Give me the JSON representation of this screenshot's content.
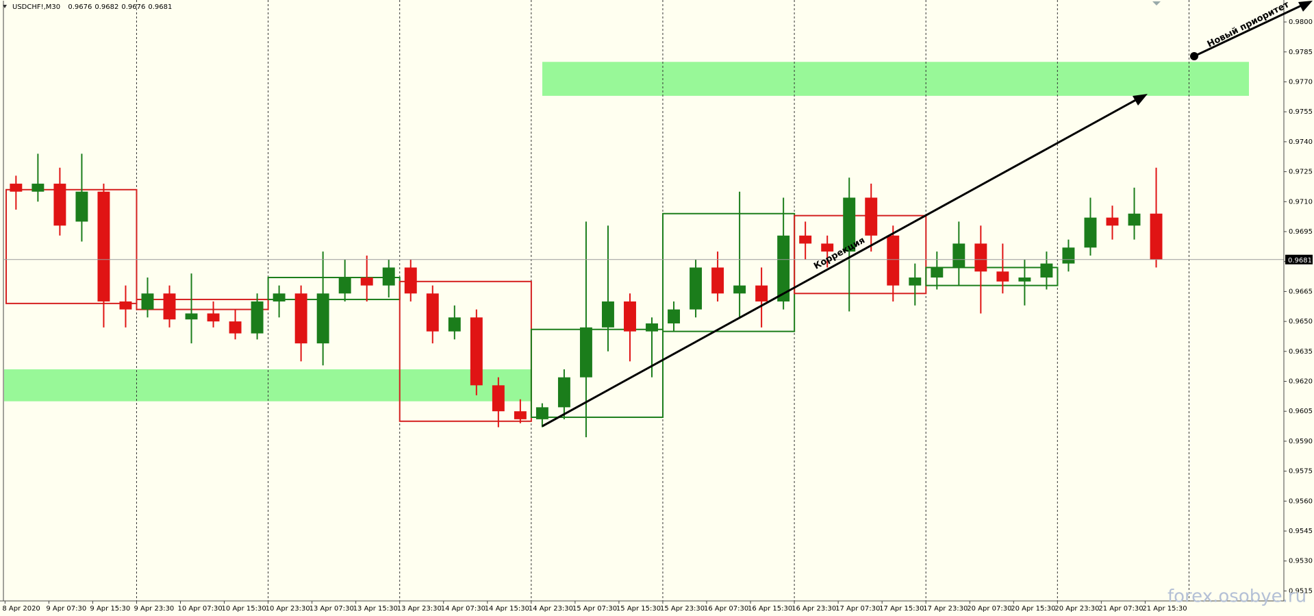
{
  "chart_data": {
    "type": "candlestick",
    "symbol": "USDCHF!,M30",
    "header_ohlc": [
      0.9676,
      0.9682,
      0.9676,
      0.9681
    ],
    "last_price": 0.9681,
    "up_color": "#1b7d1b",
    "down_color": "#e01414",
    "ylim": [
      0.951,
      0.9811
    ],
    "yticks": [
      {
        "value": 0.98,
        "label": "0.9800"
      },
      0.9785,
      {
        "value": 0.977,
        "label": "0.9770"
      },
      0.9755,
      {
        "value": 0.974,
        "label": "0.9740"
      },
      0.9725,
      {
        "value": 0.971,
        "label": "0.9710"
      },
      0.9695,
      {
        "value": 0.968,
        "label": "0.9680"
      },
      0.9665,
      {
        "value": 0.965,
        "label": "0.9650"
      },
      0.9635,
      {
        "value": 0.962,
        "label": "0.9620"
      },
      0.9605,
      {
        "value": 0.959,
        "label": "0.9590"
      },
      0.9575,
      {
        "value": 0.956,
        "label": "0.9560"
      },
      0.9545,
      {
        "value": 0.953,
        "label": "0.9530"
      },
      0.9515
    ],
    "categories": [
      "8 Apr 2020",
      "9 Apr 07:30",
      "9 Apr 15:30",
      "9 Apr 23:30",
      "10 Apr 07:30",
      "10 Apr 15:30",
      "10 Apr 23:30",
      "13 Apr 07:30",
      "13 Apr 15:30",
      "13 Apr 23:30",
      "14 Apr 07:30",
      "14 Apr 15:30",
      "14 Apr 23:30",
      "15 Apr 07:30",
      "15 Apr 15:30",
      "15 Apr 23:30",
      "16 Apr 07:30",
      "16 Apr 15:30",
      "16 Apr 23:30",
      "17 Apr 07:30",
      "17 Apr 15:30",
      "17 Apr 23:30",
      "20 Apr 07:30",
      "20 Apr 15:30",
      "20 Apr 23:30",
      "21 Apr 07:30",
      "21 Apr 15:30"
    ],
    "candles": [
      [
        0.9719,
        0.9723,
        0.9706,
        0.9715
      ],
      [
        0.9715,
        0.9734,
        0.971,
        0.9719
      ],
      [
        0.9719,
        0.9727,
        0.9693,
        0.9698
      ],
      [
        0.97,
        0.9734,
        0.969,
        0.9715
      ],
      [
        0.9715,
        0.9719,
        0.9647,
        0.966
      ],
      [
        0.966,
        0.9668,
        0.9647,
        0.9656
      ],
      [
        0.9656,
        0.9672,
        0.9652,
        0.9664
      ],
      [
        0.9664,
        0.9668,
        0.9647,
        0.9651
      ],
      [
        0.9651,
        0.9674,
        0.9639,
        0.9654
      ],
      [
        0.9654,
        0.966,
        0.9647,
        0.965
      ],
      [
        0.965,
        0.9656,
        0.9641,
        0.9644
      ],
      [
        0.9644,
        0.9664,
        0.9641,
        0.966
      ],
      [
        0.966,
        0.9668,
        0.9652,
        0.9664
      ],
      [
        0.9664,
        0.9668,
        0.963,
        0.9639
      ],
      [
        0.9639,
        0.9685,
        0.9628,
        0.9664
      ],
      [
        0.9664,
        0.9681,
        0.966,
        0.9672
      ],
      [
        0.9672,
        0.9683,
        0.966,
        0.9668
      ],
      [
        0.9668,
        0.9681,
        0.9662,
        0.9677
      ],
      [
        0.9677,
        0.9681,
        0.966,
        0.9664
      ],
      [
        0.9664,
        0.9668,
        0.9639,
        0.9645
      ],
      [
        0.9645,
        0.9658,
        0.9641,
        0.9652
      ],
      [
        0.9652,
        0.9656,
        0.9613,
        0.9618
      ],
      [
        0.9618,
        0.9622,
        0.9597,
        0.9605
      ],
      [
        0.9605,
        0.9611,
        0.9599,
        0.9601
      ],
      [
        0.9601,
        0.9609,
        0.9597,
        0.9607
      ],
      [
        0.9607,
        0.9626,
        0.9601,
        0.9622
      ],
      [
        0.9622,
        0.97,
        0.9592,
        0.9647
      ],
      [
        0.9647,
        0.9698,
        0.9635,
        0.966
      ],
      [
        0.966,
        0.9664,
        0.963,
        0.9645
      ],
      [
        0.9645,
        0.9652,
        0.9622,
        0.9649
      ],
      [
        0.9649,
        0.966,
        0.9645,
        0.9656
      ],
      [
        0.9656,
        0.9681,
        0.9652,
        0.9677
      ],
      [
        0.9677,
        0.9685,
        0.966,
        0.9664
      ],
      [
        0.9664,
        0.9715,
        0.9652,
        0.9668
      ],
      [
        0.9668,
        0.9677,
        0.9647,
        0.966
      ],
      [
        0.966,
        0.9712,
        0.9656,
        0.9693
      ],
      [
        0.9693,
        0.97,
        0.9681,
        0.9689
      ],
      [
        0.9689,
        0.9693,
        0.9677,
        0.9685
      ],
      [
        0.9685,
        0.9722,
        0.9655,
        0.9712
      ],
      [
        0.9712,
        0.9719,
        0.9685,
        0.9693
      ],
      [
        0.9693,
        0.9698,
        0.966,
        0.9668
      ],
      [
        0.9668,
        0.9679,
        0.9658,
        0.9672
      ],
      [
        0.9672,
        0.9685,
        0.9666,
        0.9677
      ],
      [
        0.9677,
        0.97,
        0.9668,
        0.9689
      ],
      [
        0.9689,
        0.9698,
        0.9654,
        0.9675
      ],
      [
        0.9675,
        0.9689,
        0.9664,
        0.967
      ],
      [
        0.967,
        0.9681,
        0.9658,
        0.9672
      ],
      [
        0.9672,
        0.9685,
        0.9666,
        0.9679
      ],
      [
        0.9679,
        0.9691,
        0.9675,
        0.9687
      ],
      [
        0.9687,
        0.9712,
        0.9683,
        0.9702
      ],
      [
        0.9702,
        0.9708,
        0.9691,
        0.9698
      ],
      [
        0.9698,
        0.9717,
        0.9691,
        0.9704
      ],
      [
        0.9704,
        0.9727,
        0.9677,
        0.9681
      ]
    ],
    "boxes": [
      {
        "color": "#d42020",
        "top": 0.9716,
        "bottom": 0.9659
      },
      {
        "color": "#d42020",
        "top": 0.9661,
        "bottom": 0.9656
      },
      {
        "color": "#1b7d1b",
        "top": 0.9672,
        "bottom": 0.9661
      },
      {
        "color": "#d42020",
        "top": 0.967,
        "bottom": 0.96
      },
      {
        "color": "#1b7d1b",
        "top": 0.9646,
        "bottom": 0.9602
      },
      {
        "color": "#1b7d1b",
        "top": 0.9704,
        "bottom": 0.9645
      },
      {
        "color": "#d42020",
        "top": 0.9703,
        "bottom": 0.9664
      },
      {
        "color": "#1b7d1b",
        "top": 0.9677,
        "bottom": 0.9668
      }
    ],
    "zones": [
      {
        "color": "#98f898",
        "top": 0.9626,
        "bottom": 0.961
      },
      {
        "color": "#98f898",
        "top": 0.978,
        "bottom": 0.9763
      }
    ],
    "annotations": [
      "Коррекция",
      "Новый приоритет"
    ],
    "watermark": "forex.osobye.ru"
  }
}
